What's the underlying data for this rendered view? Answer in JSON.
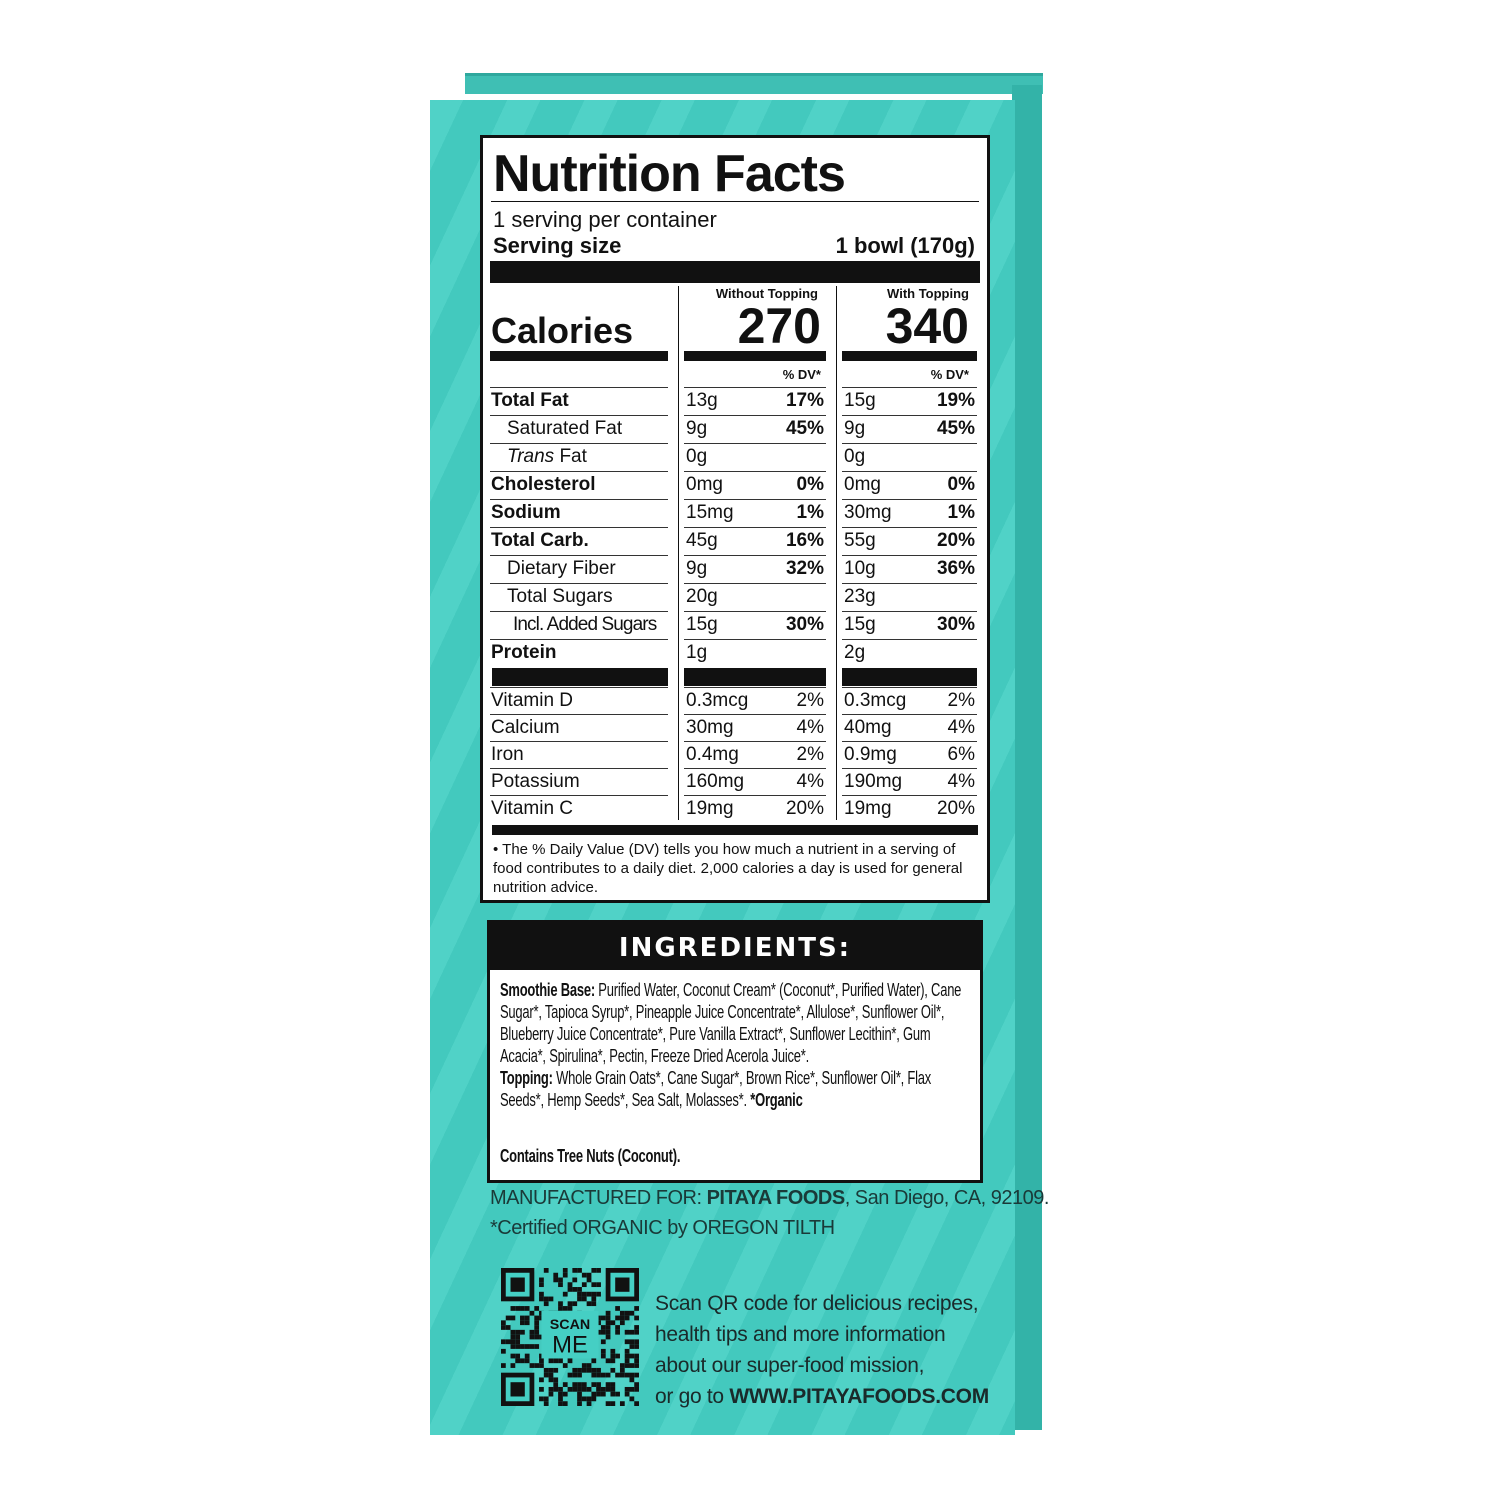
{
  "nutrition_facts": {
    "title": "Nutrition Facts",
    "servings_per_container": "1 serving per container",
    "serving_size_label": "Serving size",
    "serving_size_value": "1 bowl (170g)",
    "columns": [
      {
        "header": "Without Topping",
        "calories": "270",
        "dv_header": "% DV*"
      },
      {
        "header": "With Topping",
        "calories": "340",
        "dv_header": "% DV*"
      }
    ],
    "calories_label": "Calories",
    "nutrients": [
      {
        "name": "Total Fat",
        "style": "bold",
        "indent": 0,
        "values": [
          [
            "13g",
            "17%"
          ],
          [
            "15g",
            "19%"
          ]
        ]
      },
      {
        "name": "Saturated Fat",
        "style": "normal",
        "indent": 1,
        "values": [
          [
            "9g",
            "45%"
          ],
          [
            "9g",
            "45%"
          ]
        ]
      },
      {
        "name": "Trans Fat",
        "style": "trans",
        "indent": 1,
        "values": [
          [
            "0g",
            ""
          ],
          [
            "0g",
            ""
          ]
        ]
      },
      {
        "name": "Cholesterol",
        "style": "bold",
        "indent": 0,
        "values": [
          [
            "0mg",
            "0%"
          ],
          [
            "0mg",
            "0%"
          ]
        ]
      },
      {
        "name": "Sodium",
        "style": "bold",
        "indent": 0,
        "values": [
          [
            "15mg",
            "1%"
          ],
          [
            "30mg",
            "1%"
          ]
        ]
      },
      {
        "name": "Total Carb.",
        "style": "bold",
        "indent": 0,
        "values": [
          [
            "45g",
            "16%"
          ],
          [
            "55g",
            "20%"
          ]
        ]
      },
      {
        "name": "Dietary Fiber",
        "style": "normal",
        "indent": 1,
        "values": [
          [
            "9g",
            "32%"
          ],
          [
            "10g",
            "36%"
          ]
        ]
      },
      {
        "name": "Total Sugars",
        "style": "normal",
        "indent": 1,
        "values": [
          [
            "20g",
            ""
          ],
          [
            "23g",
            ""
          ]
        ]
      },
      {
        "name": "Incl. Added Sugars",
        "style": "normal",
        "indent": 2,
        "values": [
          [
            "15g",
            "30%"
          ],
          [
            "15g",
            "30%"
          ]
        ]
      },
      {
        "name": "Protein",
        "style": "bold",
        "indent": 0,
        "values": [
          [
            "1g",
            ""
          ],
          [
            "2g",
            ""
          ]
        ]
      }
    ],
    "vitamins": [
      {
        "name": "Vitamin D",
        "values": [
          [
            "0.3mcg",
            "2%"
          ],
          [
            "0.3mcg",
            "2%"
          ]
        ]
      },
      {
        "name": "Calcium",
        "values": [
          [
            "30mg",
            "4%"
          ],
          [
            "40mg",
            "4%"
          ]
        ]
      },
      {
        "name": "Iron",
        "values": [
          [
            "0.4mg",
            "2%"
          ],
          [
            "0.9mg",
            "6%"
          ]
        ]
      },
      {
        "name": "Potassium",
        "values": [
          [
            "160mg",
            "4%"
          ],
          [
            "190mg",
            "4%"
          ]
        ]
      },
      {
        "name": "Vitamin C",
        "values": [
          [
            "19mg",
            "20%"
          ],
          [
            "19mg",
            "20%"
          ]
        ]
      }
    ],
    "footnote": "The % Daily Value (DV) tells you how much a nutrient in a serving of food contributes to a daily diet. 2,000 calories a day is used for general nutrition advice."
  },
  "ingredients": {
    "heading": "INGREDIENTS:",
    "base_label": "Smoothie Base:",
    "base_text": " Purified Water, Coconut Cream* (Coconut*, Purified Water), Cane Sugar*, Tapioca Syrup*, Pineapple Juice Concentrate*, Allulose*, Sunflower Oil*, Blueberry Juice Concentrate*, Pure Vanilla Extract*, Sunflower Lecithin*, Gum Acacia*, Spirulina*, Pectin, Freeze Dried Acerola Juice*.",
    "topping_label": "Topping:",
    "topping_text": " Whole Grain Oats*, Cane Sugar*, Brown Rice*, Sunflower Oil*, Flax Seeds*, Hemp Seeds*, Sea Salt, Molasses*. ",
    "organic_note": "*Organic",
    "allergen": "Contains Tree Nuts (Coconut)."
  },
  "manufacturer": {
    "prefix": "MANUFACTURED FOR: ",
    "company": "PITAYA FOODS",
    "address": ", San Diego, CA, 92109.",
    "certification": "*Certified ORGANIC by OREGON TILTH"
  },
  "qr": {
    "badge_small": "SCAN",
    "badge_large": "ME",
    "text_lines": [
      "Scan QR code for delicious recipes,",
      "health tips and more information",
      "about our super-food mission,"
    ],
    "url_prefix": "or go to ",
    "url": "WWW.PITAYAFOODS.COM"
  },
  "colors": {
    "package": "#45cfc4",
    "label_ink": "#111111"
  }
}
